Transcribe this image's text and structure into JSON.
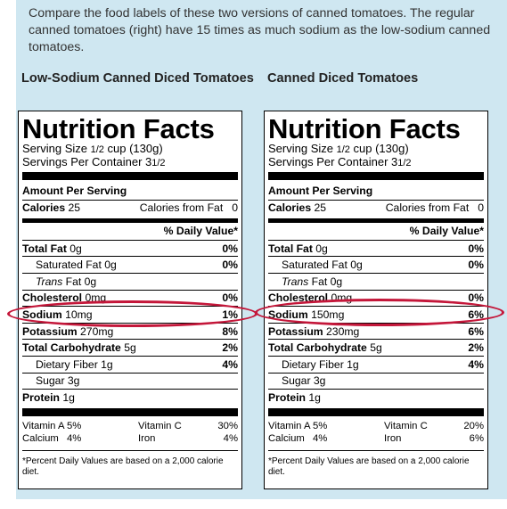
{
  "intro": "Compare the food labels of these two versions of canned tomatoes. The regular canned tomatoes (right) have 15 times as much sodium as the low-sodium canned tomatoes.",
  "captions": {
    "left": "Low-Sodium Canned Diced Tomatoes",
    "right": "Canned Diced Tomatoes"
  },
  "highlight_color": "#c4173a",
  "panel_color": "#cfe7f1",
  "left": {
    "title": "Nutrition Facts",
    "serving_size_label": "Serving Size",
    "serving_size_frac": "1/2",
    "serving_size_rest": "cup (130g)",
    "servings_label": "Servings Per Container 3",
    "servings_frac": "1/2",
    "amount_per_serving": "Amount Per Serving",
    "calories_label": "Calories",
    "calories": "25",
    "calories_fat_label": "Calories from Fat",
    "calories_fat": "0",
    "dv_header": "% Daily Value*",
    "total_fat_label": "Total Fat",
    "total_fat": "0g",
    "total_fat_dv": "0%",
    "sat_fat": "Saturated Fat 0g",
    "sat_fat_dv": "0%",
    "trans_label": "Trans",
    "trans_rest": "Fat 0g",
    "chol_label": "Cholesterol",
    "chol": "0mg",
    "chol_dv": "0%",
    "sodium_label": "Sodium",
    "sodium": "10mg",
    "sodium_dv": "1%",
    "potassium_label": "Potassium",
    "potassium": "270mg",
    "potassium_dv": "8%",
    "carb_label": "Total Carbohydrate",
    "carb": "5g",
    "carb_dv": "2%",
    "fiber": "Dietary Fiber 1g",
    "fiber_dv": "4%",
    "sugar": "Sugar 3g",
    "protein_label": "Protein",
    "protein": "1g",
    "vit_a_label": "Vitamin A",
    "vit_a": "5%",
    "vit_c_label": "Vitamin C",
    "vit_c": "30%",
    "calcium_label": "Calcium",
    "calcium": "4%",
    "iron_label": "Iron",
    "iron": "4%",
    "footnote": "*Percent Daily Values are based on a 2,000 calorie diet."
  },
  "right": {
    "title": "Nutrition Facts",
    "serving_size_label": "Serving Size",
    "serving_size_frac": "1/2",
    "serving_size_rest": "cup (130g)",
    "servings_label": "Servings Per Container 3",
    "servings_frac": "1/2",
    "amount_per_serving": "Amount Per Serving",
    "calories_label": "Calories",
    "calories": "25",
    "calories_fat_label": "Calories from Fat",
    "calories_fat": "0",
    "dv_header": "% Daily Value*",
    "total_fat_label": "Total Fat",
    "total_fat": "0g",
    "total_fat_dv": "0%",
    "sat_fat": "Saturated Fat 0g",
    "sat_fat_dv": "0%",
    "trans_label": "Trans",
    "trans_rest": "Fat 0g",
    "chol_label": "Cholesterol",
    "chol": "0mg",
    "chol_dv": "0%",
    "sodium_label": "Sodium",
    "sodium": "150mg",
    "sodium_dv": "6%",
    "potassium_label": "Potassium",
    "potassium": "230mg",
    "potassium_dv": "6%",
    "carb_label": "Total Carbohydrate",
    "carb": "5g",
    "carb_dv": "2%",
    "fiber": "Dietary Fiber 1g",
    "fiber_dv": "4%",
    "sugar": "Sugar 3g",
    "protein_label": "Protein",
    "protein": "1g",
    "vit_a_label": "Vitamin A",
    "vit_a": "5%",
    "vit_c_label": "Vitamin C",
    "vit_c": "20%",
    "calcium_label": "Calcium",
    "calcium": "4%",
    "iron_label": "Iron",
    "iron": "6%",
    "footnote": "*Percent Daily Values are based on a 2,000 calorie diet."
  }
}
